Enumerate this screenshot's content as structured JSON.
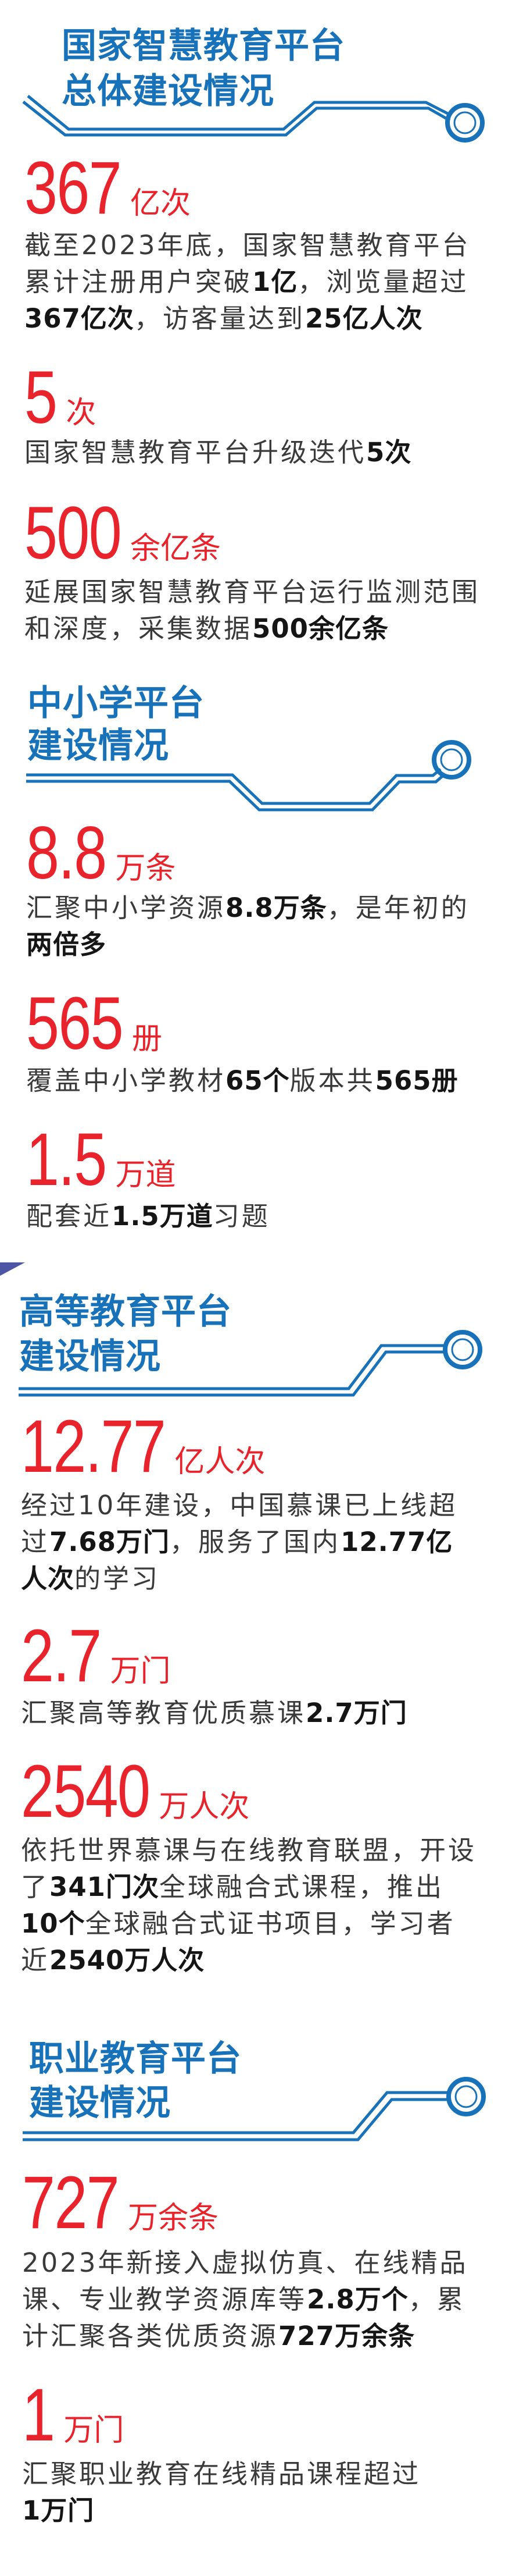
{
  "colors": {
    "title_blue": "#1872ba",
    "stat_red": "#e8232b",
    "accent_purple": "#4e55a5"
  },
  "sections": [
    {
      "title": [
        "国家智慧教育平台",
        "总体建设情况"
      ],
      "stats": [
        {
          "number": "367",
          "unit": "亿次",
          "lines": [
            [
              {
                "t": "截至2023年底，国家智慧教育平台"
              }
            ],
            [
              {
                "t": "累计注册用户突破"
              },
              {
                "t": "1亿",
                "b": true
              },
              {
                "t": "，浏览量超过"
              }
            ],
            [
              {
                "t": "367亿次",
                "b": true
              },
              {
                "t": "，访客量达到"
              },
              {
                "t": "25亿人次",
                "b": true
              }
            ]
          ]
        },
        {
          "number": "5",
          "unit": "次",
          "lines": [
            [
              {
                "t": "国家智慧教育平台升级迭代"
              },
              {
                "t": "5次",
                "b": true
              }
            ]
          ]
        },
        {
          "number": "500",
          "unit": "余亿条",
          "lines": [
            [
              {
                "t": "延展国家智慧教育平台运行监测范围"
              }
            ],
            [
              {
                "t": "和深度，采集数据"
              },
              {
                "t": "500余亿条",
                "b": true
              }
            ]
          ]
        }
      ]
    },
    {
      "title": [
        "中小学平台",
        "建设情况"
      ],
      "stats": [
        {
          "number": "8.8",
          "unit": "万条",
          "lines": [
            [
              {
                "t": "汇聚中小学资源"
              },
              {
                "t": "8.8万条",
                "b": true
              },
              {
                "t": "，是年初的"
              }
            ],
            [
              {
                "t": "两倍多",
                "b": true
              }
            ]
          ]
        },
        {
          "number": "565",
          "unit": "册",
          "lines": [
            [
              {
                "t": "覆盖中小学教材"
              },
              {
                "t": "65个",
                "b": true
              },
              {
                "t": "版本共"
              },
              {
                "t": "565册",
                "b": true
              }
            ]
          ]
        },
        {
          "number": "1.5",
          "unit": "万道",
          "lines": [
            [
              {
                "t": "配套近"
              },
              {
                "t": "1.5万道",
                "b": true
              },
              {
                "t": "习题"
              }
            ]
          ]
        }
      ]
    },
    {
      "title": [
        "高等教育平台",
        "建设情况"
      ],
      "stats": [
        {
          "number": "12.77",
          "unit": "亿人次",
          "lines": [
            [
              {
                "t": "经过10年建设，中国慕课已上线超"
              }
            ],
            [
              {
                "t": "过"
              },
              {
                "t": "7.68万门",
                "b": true
              },
              {
                "t": "，服务了国内"
              },
              {
                "t": "12.77亿",
                "b": true
              }
            ],
            [
              {
                "t": "人次",
                "b": true
              },
              {
                "t": "的学习"
              }
            ]
          ]
        },
        {
          "number": "2.7",
          "unit": "万门",
          "lines": [
            [
              {
                "t": "汇聚高等教育优质慕课"
              },
              {
                "t": "2.7万门",
                "b": true
              }
            ]
          ]
        },
        {
          "number": "2540",
          "unit": "万人次",
          "lines": [
            [
              {
                "t": "依托世界慕课与在线教育联盟，开设"
              }
            ],
            [
              {
                "t": "了"
              },
              {
                "t": "341门次",
                "b": true
              },
              {
                "t": "全球融合式课程，推出"
              }
            ],
            [
              {
                "t": "10个",
                "b": true
              },
              {
                "t": "全球融合式证书项目，学习者"
              }
            ],
            [
              {
                "t": "近"
              },
              {
                "t": "2540万人次",
                "b": true
              }
            ]
          ]
        }
      ]
    },
    {
      "title": [
        "职业教育平台",
        "建设情况"
      ],
      "stats": [
        {
          "number": "727",
          "unit": "万余条",
          "lines": [
            [
              {
                "t": "2023年新接入虚拟仿真、在线精品"
              }
            ],
            [
              {
                "t": "课、专业教学资源库等"
              },
              {
                "t": "2.8万个",
                "b": true
              },
              {
                "t": "，累"
              }
            ],
            [
              {
                "t": "计汇聚各类优质资源"
              },
              {
                "t": "727万余条",
                "b": true
              }
            ]
          ]
        },
        {
          "number": "1",
          "unit": "万门",
          "lines": [
            [
              {
                "t": "汇聚职业教育在线精品课程超过"
              }
            ],
            [
              {
                "t": "1万门",
                "b": true
              }
            ]
          ]
        }
      ]
    }
  ]
}
